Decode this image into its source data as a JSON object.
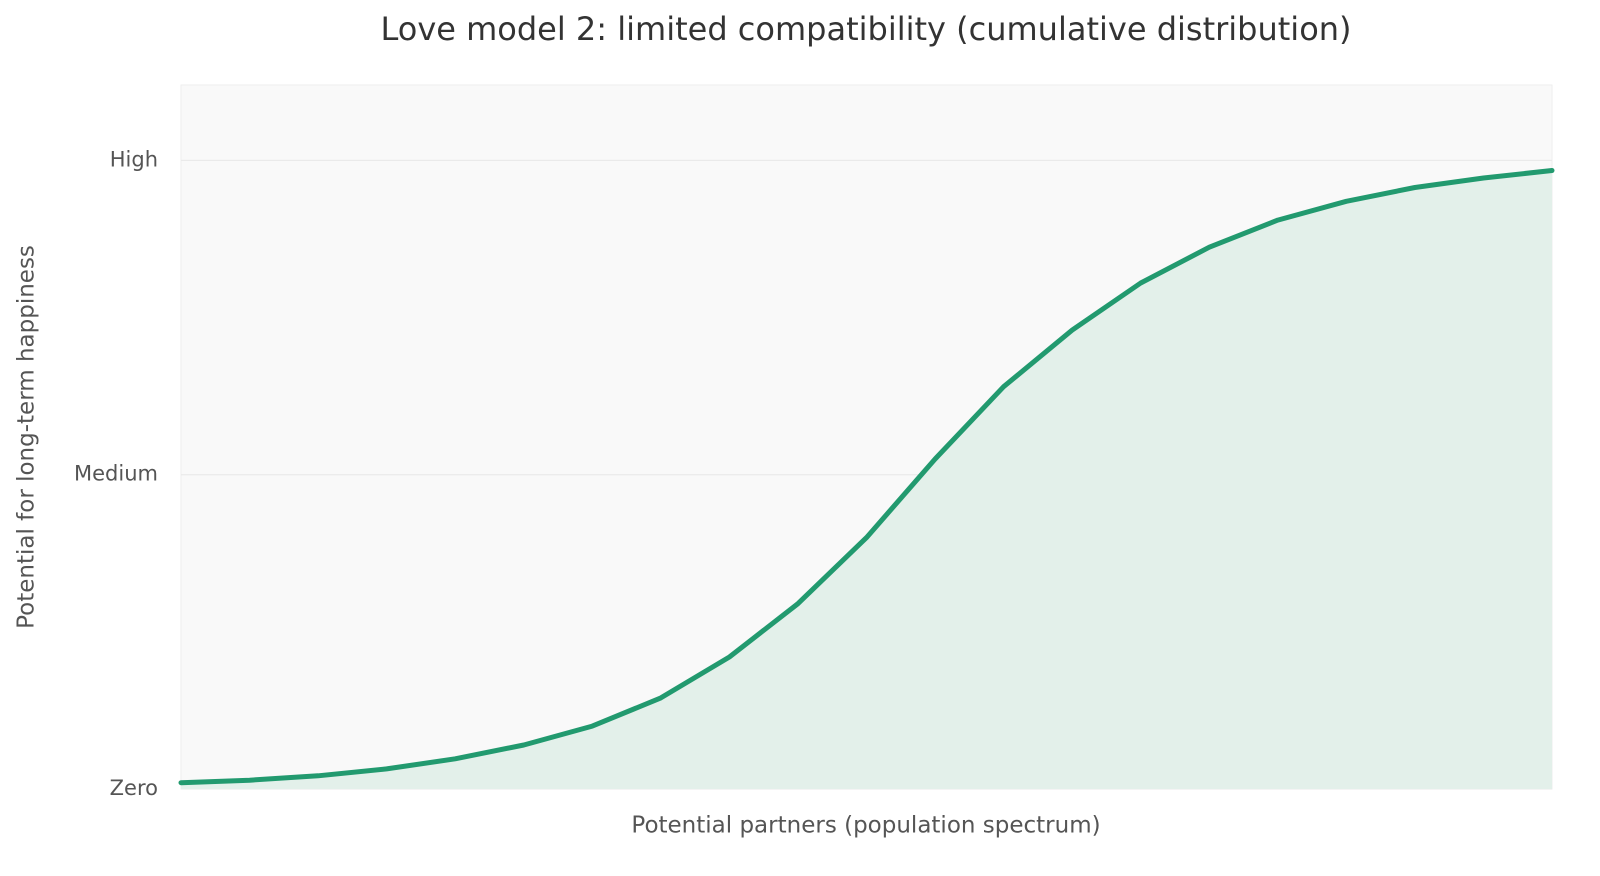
{
  "chart_data": {
    "type": "line",
    "title": "Love model 2: limited compatibility (cumulative distribution)",
    "x_label": "Potential partners (population spectrum)",
    "y_label": "Potential for long-term happiness",
    "x": [
      0,
      0.05,
      0.1,
      0.15,
      0.2,
      0.25,
      0.3,
      0.35,
      0.4,
      0.45,
      0.5,
      0.55,
      0.6,
      0.65,
      0.7,
      0.75,
      0.8,
      0.85,
      0.9,
      0.95,
      1
    ],
    "series": [
      {
        "color": "#229a6f",
        "values": [
          0.01,
          0.014,
          0.021,
          0.032,
          0.048,
          0.07,
          0.1,
          0.145,
          0.21,
          0.295,
          0.4,
          0.525,
          0.64,
          0.73,
          0.805,
          0.862,
          0.905,
          0.935,
          0.957,
          0.972,
          0.984
        ]
      }
    ],
    "fill": "#e3f0ea",
    "xlim": [
      0,
      1
    ],
    "ylim": [
      0,
      1.12
    ],
    "yticks": [
      {
        "value": 0,
        "label": "Zero"
      },
      {
        "value": 0.5,
        "label": "Medium"
      },
      {
        "value": 1,
        "label": "High"
      }
    ],
    "grid": true
  }
}
